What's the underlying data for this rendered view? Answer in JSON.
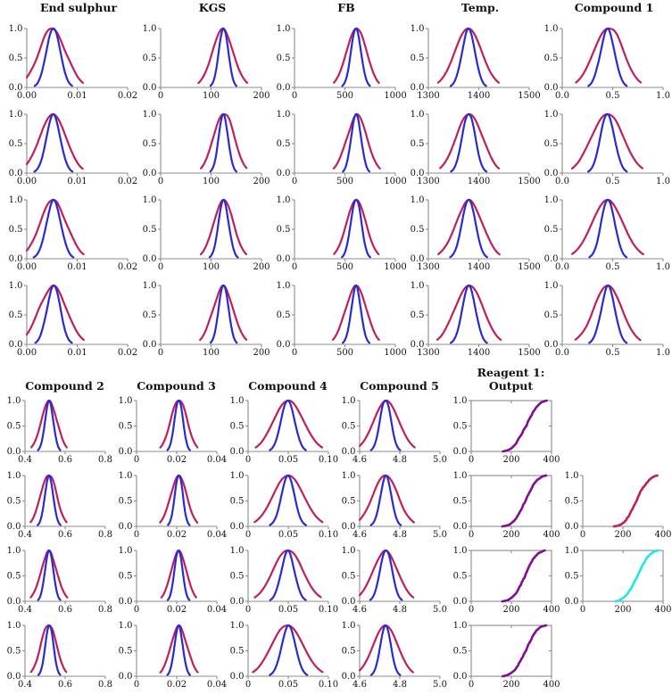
{
  "figure": {
    "background": "#ffffff",
    "y_tick_labels": [
      "0.0",
      "0.5",
      "1.0"
    ]
  },
  "colors": {
    "wide_curve": "#c01e5c",
    "narrow_curve": "#2a2ad2",
    "cdf_purple": "#820c92",
    "cdf_crimson": "#c01e5c",
    "cdf_cyan": "#1ce6ee",
    "axis": "#8c8c8c",
    "tick_text": "#111111"
  },
  "chart_data": {
    "type": "multi-panel",
    "panel_kinds": [
      "density",
      "cdf"
    ],
    "y_ticks": [
      0.0,
      0.5,
      1.0
    ],
    "ylim": [
      0,
      1
    ],
    "top_section": {
      "rows": 4,
      "columns": [
        {
          "title": "End sulphur",
          "type": "density",
          "xlim": [
            0,
            0.02
          ],
          "xticks": [
            0,
            0.01,
            0.02
          ],
          "xtick_labels": [
            "0.00",
            "0.01",
            "0.02"
          ],
          "curves": {
            "wide": {
              "name": "wide-density",
              "color_key": "wide_curve",
              "mu": 0.0052,
              "sigma": 0.0027,
              "peak": 1.0
            },
            "narrow": {
              "name": "narrow-density",
              "color_key": "narrow_curve",
              "mu": 0.0053,
              "sigma": 0.0014,
              "peak": 1.0
            }
          }
        },
        {
          "title": "KGS",
          "type": "density",
          "xlim": [
            0,
            200
          ],
          "xticks": [
            0,
            100,
            200
          ],
          "xtick_labels": [
            "0",
            "100",
            "200"
          ],
          "curves": {
            "wide": {
              "name": "wide-density",
              "color_key": "wide_curve",
              "mu": 124,
              "sigma": 21,
              "peak": 1.0
            },
            "narrow": {
              "name": "narrow-density",
              "color_key": "narrow_curve",
              "mu": 125,
              "sigma": 10,
              "peak": 1.0
            }
          }
        },
        {
          "title": "FB",
          "type": "density",
          "xlim": [
            0,
            1000
          ],
          "xticks": [
            0,
            500,
            1000
          ],
          "xtick_labels": [
            "0",
            "500",
            "1000"
          ],
          "curves": {
            "wide": {
              "name": "wide-density",
              "color_key": "wide_curve",
              "mu": 615,
              "sigma": 103,
              "peak": 1.0
            },
            "narrow": {
              "name": "narrow-density",
              "color_key": "narrow_curve",
              "mu": 610,
              "sigma": 50,
              "peak": 1.0
            }
          }
        },
        {
          "title": "Temp.",
          "type": "density",
          "xlim": [
            1300,
            1500
          ],
          "xticks": [
            1300,
            1400,
            1500
          ],
          "xtick_labels": [
            "1300",
            "1400",
            "1500"
          ],
          "curves": {
            "wide": {
              "name": "wide-density",
              "color_key": "wide_curve",
              "mu": 1381,
              "sigma": 27,
              "peak": 1.0
            },
            "narrow": {
              "name": "narrow-density",
              "color_key": "narrow_curve",
              "mu": 1380,
              "sigma": 13,
              "peak": 1.0
            }
          }
        },
        {
          "title": "Compound 1",
          "type": "density",
          "xlim": [
            0,
            1
          ],
          "xticks": [
            0,
            0.5,
            1
          ],
          "xtick_labels": [
            "0.0",
            "0.5",
            "1.0"
          ],
          "curves": {
            "wide": {
              "name": "wide-density",
              "color_key": "wide_curve",
              "mu": 0.45,
              "sigma": 0.15,
              "peak": 1.0
            },
            "narrow": {
              "name": "narrow-density",
              "color_key": "narrow_curve",
              "mu": 0.45,
              "sigma": 0.068,
              "peak": 1.0
            }
          }
        }
      ]
    },
    "bottom_section": {
      "rows": 4,
      "columns": [
        {
          "title": "Compound 2",
          "type": "density",
          "xlim": [
            0.4,
            0.8
          ],
          "xticks": [
            0.4,
            0.6,
            0.8
          ],
          "xtick_labels": [
            "0.4",
            "0.6",
            "0.8"
          ],
          "curves": {
            "wide": {
              "name": "wide-density",
              "color_key": "wide_curve",
              "mu": 0.52,
              "sigma": 0.04,
              "peak": 1.0
            },
            "narrow": {
              "name": "narrow-density",
              "color_key": "narrow_curve",
              "mu": 0.52,
              "sigma": 0.021,
              "peak": 1.0
            }
          }
        },
        {
          "title": "Compound 3",
          "type": "density",
          "xlim": [
            0,
            0.04
          ],
          "xticks": [
            0,
            0.02,
            0.04
          ],
          "xtick_labels": [
            "0",
            "0.02",
            "0.04"
          ],
          "curves": {
            "wide": {
              "name": "wide-density",
              "color_key": "wide_curve",
              "mu": 0.021,
              "sigma": 0.004,
              "peak": 1.0
            },
            "narrow": {
              "name": "narrow-density",
              "color_key": "narrow_curve",
              "mu": 0.021,
              "sigma": 0.002,
              "peak": 1.0
            }
          }
        },
        {
          "title": "Compound 4",
          "type": "density",
          "xlim": [
            0,
            0.1
          ],
          "xticks": [
            0,
            0.05,
            0.1
          ],
          "xtick_labels": [
            "0",
            "0.05",
            "0.10"
          ],
          "curves": {
            "wide": {
              "name": "wide-density",
              "color_key": "wide_curve",
              "mu": 0.05,
              "sigma": 0.019,
              "peak": 1.0
            },
            "narrow": {
              "name": "narrow-density",
              "color_key": "narrow_curve",
              "mu": 0.05,
              "sigma": 0.0085,
              "peak": 1.0
            }
          }
        },
        {
          "title": "Compound 5",
          "type": "density",
          "xlim": [
            4.6,
            5.0
          ],
          "xticks": [
            4.6,
            4.8,
            5.0
          ],
          "xtick_labels": [
            "4.6",
            "4.8",
            "5.0"
          ],
          "curves": {
            "wide": {
              "name": "wide-density",
              "color_key": "wide_curve",
              "mu": 4.73,
              "sigma": 0.062,
              "peak": 1.0
            },
            "narrow": {
              "name": "narrow-density",
              "color_key": "narrow_curve",
              "mu": 4.73,
              "sigma": 0.028,
              "peak": 1.0
            }
          }
        },
        {
          "title": "Reagent 1:\nOutput",
          "type": "cdf",
          "boxed": true,
          "color_key": "cdf_purple",
          "xlim": [
            0,
            400
          ],
          "xticks": [
            0,
            200,
            400
          ],
          "xtick_labels": [
            "0",
            "200",
            "400"
          ],
          "cdf": {
            "start": 155,
            "end": 372,
            "center": 270,
            "spread": 47,
            "y_start": 0.0,
            "y_end": 1.0
          }
        },
        {
          "title": "",
          "type": "mixed",
          "xlim": [
            0,
            400
          ],
          "xticks": [
            0,
            200,
            400
          ],
          "xtick_labels": [
            "0",
            "200",
            "400"
          ],
          "cells": [
            null,
            {
              "type": "cdf",
              "boxed": false,
              "color_key": "cdf_crimson",
              "cdf": {
                "start": 155,
                "end": 368,
                "center": 272,
                "spread": 47,
                "y_start": 0.0,
                "y_end": 1.0
              }
            },
            {
              "type": "cdf",
              "boxed": true,
              "color_key": "cdf_cyan",
              "cdf": {
                "start": 158,
                "end": 370,
                "center": 272,
                "spread": 47,
                "y_start": 0.0,
                "y_end": 1.0
              }
            },
            null
          ]
        }
      ]
    }
  }
}
